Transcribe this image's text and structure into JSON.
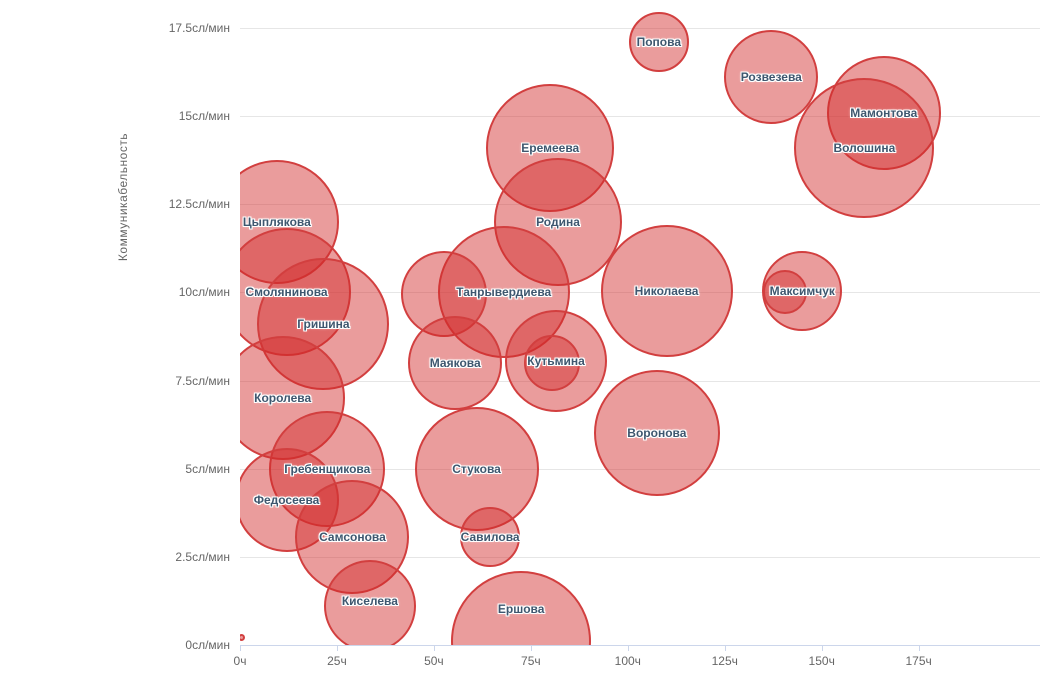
{
  "chart": {
    "background_color": "#ffffff",
    "title": "",
    "legend": false
  },
  "colors": {
    "bubble_fill": "rgba(210,45,45,0.47)",
    "bubble_stroke": "#d23f3f",
    "grid": "#e6e6e6",
    "axis_line": "#ccd6eb",
    "tick_text": "#666666",
    "label_text": "#3e576f"
  },
  "chart_data": {
    "type": "scatter",
    "subtype": "bubble",
    "title": "",
    "xlabel": "",
    "ylabel": "Коммуникабельность",
    "x_unit": "ч",
    "y_unit": "сл/мин",
    "xlim": [
      0,
      205
    ],
    "ylim": [
      0,
      18
    ],
    "grid": true,
    "legend_position": "none",
    "x_ticks": [
      {
        "v": 0,
        "label": "0ч"
      },
      {
        "v": 25,
        "label": "25ч"
      },
      {
        "v": 50,
        "label": "50ч"
      },
      {
        "v": 75,
        "label": "75ч"
      },
      {
        "v": 100,
        "label": "100ч"
      },
      {
        "v": 125,
        "label": "125ч"
      },
      {
        "v": 150,
        "label": "150ч"
      },
      {
        "v": 175,
        "label": "175ч"
      }
    ],
    "y_ticks": [
      {
        "v": 0,
        "label": "0сл/мин"
      },
      {
        "v": 2.5,
        "label": "2.5сл/мин"
      },
      {
        "v": 5,
        "label": "5сл/мин"
      },
      {
        "v": 7.5,
        "label": "7.5сл/мин"
      },
      {
        "v": 10,
        "label": "10сл/мин"
      },
      {
        "v": 12.5,
        "label": "12.5сл/мин"
      },
      {
        "v": 15,
        "label": "15сл/мин"
      },
      {
        "v": 17.5,
        "label": "17.5сл/мин"
      }
    ],
    "points": [
      {
        "name": "Попова",
        "x": 108,
        "y": 17.1,
        "r": 30
      },
      {
        "name": "Розвезева",
        "x": 137,
        "y": 16.1,
        "r": 47
      },
      {
        "name": "Мамонтова",
        "x": 166,
        "y": 15.1,
        "r": 57
      },
      {
        "name": "Волошина",
        "x": 161,
        "y": 14.1,
        "r": 70
      },
      {
        "name": "Еремеева",
        "x": 80,
        "y": 14.1,
        "r": 64
      },
      {
        "name": "Родина",
        "x": 82,
        "y": 12.0,
        "r": 64
      },
      {
        "name": "Цыплякова",
        "x": 9.5,
        "y": 12.0,
        "r": 62
      },
      {
        "name": "Смолянинова",
        "x": 12,
        "y": 10.0,
        "r": 64
      },
      {
        "name": "Танрывердиева",
        "x": 68,
        "y": 10.0,
        "r": 66
      },
      {
        "name": "",
        "x": 52.5,
        "y": 9.95,
        "r": 43
      },
      {
        "name": "Николаева",
        "x": 110,
        "y": 10.05,
        "r": 66
      },
      {
        "name": "Максимчук",
        "x": 145,
        "y": 10.05,
        "r": 40
      },
      {
        "name": "",
        "x": 140.5,
        "y": 10.0,
        "r": 22
      },
      {
        "name": "Гришина",
        "x": 21.5,
        "y": 9.1,
        "r": 66
      },
      {
        "name": "Маякова",
        "x": 55.5,
        "y": 8.0,
        "r": 47
      },
      {
        "name": "Кутьмина",
        "x": 81.5,
        "y": 8.05,
        "r": 51
      },
      {
        "name": "",
        "x": 80.5,
        "y": 8.0,
        "r": 28
      },
      {
        "name": "Королева",
        "x": 11,
        "y": 7.0,
        "r": 62
      },
      {
        "name": "Воронова",
        "x": 107.5,
        "y": 6.0,
        "r": 63
      },
      {
        "name": "Гребенщикова",
        "x": 22.5,
        "y": 5.0,
        "r": 58
      },
      {
        "name": "Стукова",
        "x": 61,
        "y": 5.0,
        "r": 62
      },
      {
        "name": "Федосеева",
        "x": 12,
        "y": 4.1,
        "r": 52
      },
      {
        "name": "Самсонова",
        "x": 29,
        "y": 3.05,
        "r": 57
      },
      {
        "name": "Савилова",
        "x": 64.5,
        "y": 3.05,
        "r": 30
      },
      {
        "name": "Киселева",
        "x": 33.5,
        "y": 1.1,
        "r": 46,
        "label_dy": -5
      },
      {
        "name": "Ершова",
        "x": 72.5,
        "y": 0.1,
        "r": 70,
        "label_dy": -32
      },
      {
        "name": "",
        "x": 0.5,
        "y": 0.2,
        "r": 3.5
      }
    ]
  }
}
